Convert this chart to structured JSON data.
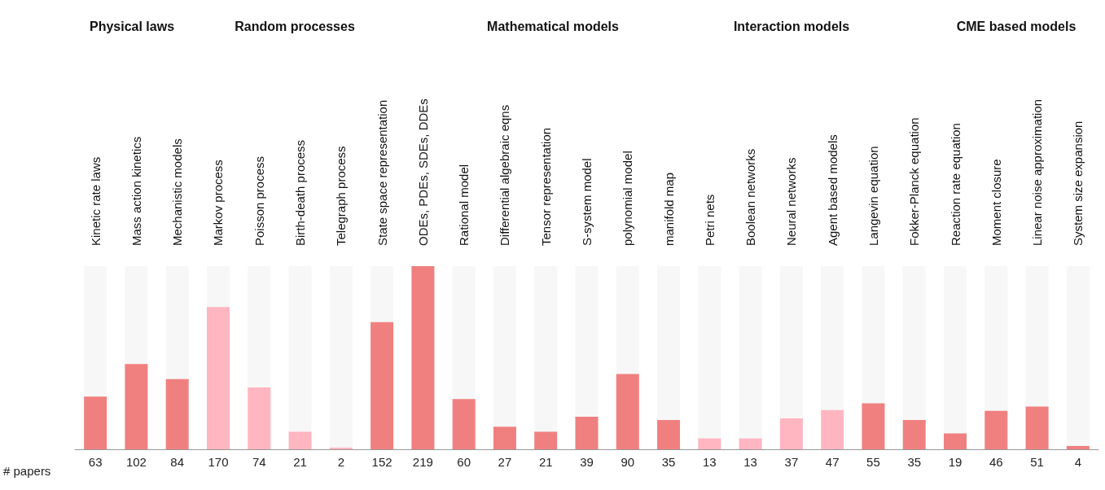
{
  "chart_data": {
    "type": "bar",
    "ylabel": "# papers",
    "categories": [
      "Kinetic rate laws",
      "Mass action kinetics",
      "Mechanistic models",
      "Markov process",
      "Poisson process",
      "Birth-death process",
      "Telegraph process",
      "State space representation",
      "ODEs, PDEs, SDEs, DDEs",
      "Rational model",
      "Differential algebraic eqns",
      "Tensor representation",
      "S-system model",
      "polynomial model",
      "manifold map",
      "Petri nets",
      "Boolean networks",
      "Neural networks",
      "Agent based models",
      "Langevin equation",
      "Fokker-Planck equation",
      "Reaction rate equation",
      "Moment closure",
      "Linear noise approximation",
      "System size expansion"
    ],
    "values": [
      63,
      102,
      84,
      170,
      74,
      21,
      2,
      152,
      219,
      60,
      27,
      21,
      39,
      90,
      35,
      13,
      13,
      37,
      47,
      55,
      35,
      19,
      46,
      51,
      4
    ],
    "colors": [
      "#f08080",
      "#f08080",
      "#f08080",
      "#ffb6c1",
      "#ffb6c1",
      "#ffb6c1",
      "#ffb6c1",
      "#f08080",
      "#f08080",
      "#f08080",
      "#f08080",
      "#f08080",
      "#f08080",
      "#f08080",
      "#f08080",
      "#ffb6c1",
      "#ffb6c1",
      "#ffb6c1",
      "#ffb6c1",
      "#f08080",
      "#f08080",
      "#f08080",
      "#f08080",
      "#f08080",
      "#f08080"
    ],
    "annotations": [
      "Physical laws",
      "Random processes",
      "Mathematical models",
      "Interaction models",
      "CME based models"
    ],
    "data_labels": true,
    "grid": false
  }
}
